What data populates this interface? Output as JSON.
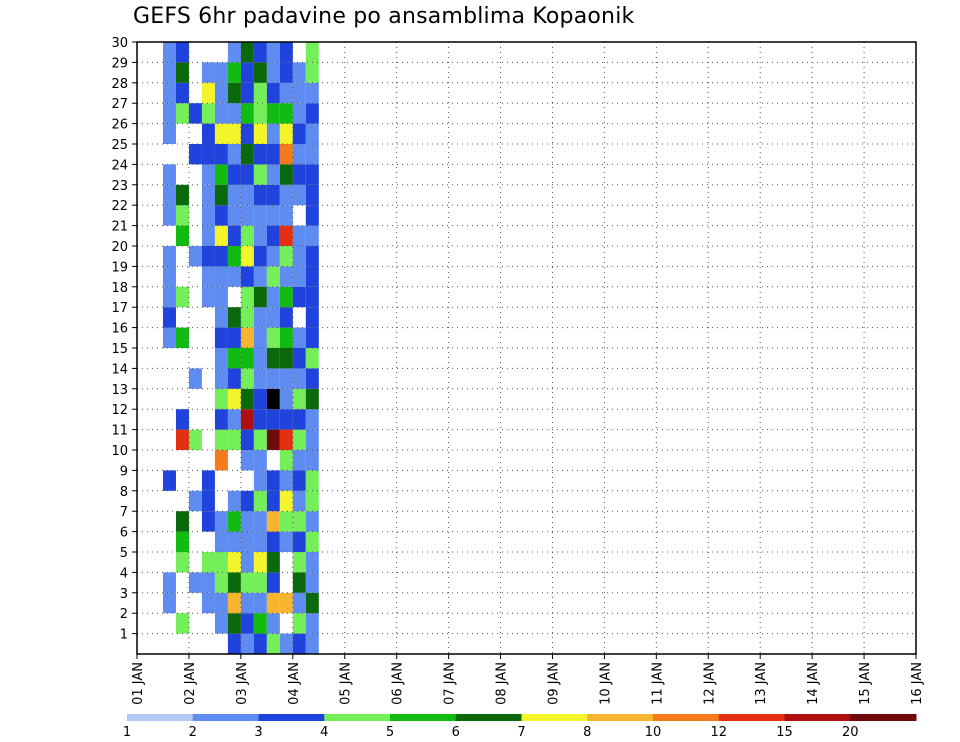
{
  "title": "GEFS 6hr padavine po ansamblima Kopaonik",
  "chart_data": {
    "type": "heatmap",
    "title": "GEFS 6hr padavine po ansamblima Kopaonik",
    "x_ticks": [
      "01 JAN",
      "02 JAN",
      "03 JAN",
      "04 JAN",
      "05 JAN",
      "06 JAN",
      "07 JAN",
      "08 JAN",
      "09 JAN",
      "10 JAN",
      "11 JAN",
      "12 JAN",
      "13 JAN",
      "14 JAN",
      "15 JAN",
      "16 JAN"
    ],
    "y_ticks": [
      "1",
      "2",
      "3",
      "4",
      "5",
      "6",
      "7",
      "8",
      "9",
      "10",
      "11",
      "12",
      "13",
      "14",
      "15",
      "16",
      "17",
      "18",
      "19",
      "20",
      "21",
      "22",
      "23",
      "24",
      "25",
      "26",
      "27",
      "28",
      "29",
      "30"
    ],
    "x_range": [
      "01 JAN",
      "16 JAN"
    ],
    "y_range": [
      0,
      30
    ],
    "time_step_hours": 6,
    "grid": "dotted",
    "colorbar": {
      "position": "bottom",
      "labels": [
        "1",
        "2",
        "3",
        "4",
        "5",
        "6",
        "7",
        "8",
        "10",
        "12",
        "15",
        "20"
      ],
      "colors": [
        "#b4c7f5",
        "#5f8cf0",
        "#1f43dc",
        "#74ee59",
        "#12bb12",
        "#0a690a",
        "#f4f42a",
        "#f7b42e",
        "#f47a1a",
        "#e43010",
        "#b00f0f",
        "#6e0a0a"
      ]
    },
    "cells": [
      [
        0,
        2,
        1
      ],
      [
        0,
        3,
        1
      ],
      [
        0,
        8,
        2
      ],
      [
        0,
        15,
        1
      ],
      [
        0,
        16,
        2
      ],
      [
        0,
        17,
        1
      ],
      [
        0,
        18,
        1
      ],
      [
        0,
        19,
        1
      ],
      [
        0,
        21,
        1
      ],
      [
        0,
        22,
        1
      ],
      [
        0,
        23,
        1
      ],
      [
        0,
        25,
        1
      ],
      [
        0,
        26,
        1
      ],
      [
        0,
        27,
        1
      ],
      [
        0,
        28,
        1
      ],
      [
        0,
        29,
        1
      ],
      [
        1,
        1,
        3
      ],
      [
        1,
        4,
        3
      ],
      [
        1,
        5,
        4
      ],
      [
        1,
        6,
        5
      ],
      [
        1,
        10,
        9
      ],
      [
        1,
        11,
        2
      ],
      [
        1,
        15,
        4
      ],
      [
        1,
        17,
        3
      ],
      [
        1,
        20,
        4
      ],
      [
        1,
        21,
        3
      ],
      [
        1,
        22,
        5
      ],
      [
        1,
        26,
        3
      ],
      [
        1,
        27,
        2
      ],
      [
        1,
        28,
        5
      ],
      [
        1,
        29,
        2
      ],
      [
        2,
        3,
        1
      ],
      [
        2,
        7,
        1
      ],
      [
        2,
        10,
        3
      ],
      [
        2,
        13,
        1
      ],
      [
        2,
        19,
        1
      ],
      [
        2,
        24,
        2
      ],
      [
        2,
        26,
        2
      ],
      [
        3,
        2,
        1
      ],
      [
        3,
        3,
        1
      ],
      [
        3,
        4,
        3
      ],
      [
        3,
        6,
        2
      ],
      [
        3,
        7,
        2
      ],
      [
        3,
        8,
        2
      ],
      [
        3,
        17,
        1
      ],
      [
        3,
        18,
        1
      ],
      [
        3,
        19,
        2
      ],
      [
        3,
        20,
        1
      ],
      [
        3,
        21,
        1
      ],
      [
        3,
        22,
        1
      ],
      [
        3,
        23,
        1
      ],
      [
        3,
        24,
        2
      ],
      [
        3,
        25,
        2
      ],
      [
        3,
        26,
        3
      ],
      [
        3,
        27,
        6
      ],
      [
        3,
        28,
        1
      ],
      [
        4,
        1,
        1
      ],
      [
        4,
        2,
        1
      ],
      [
        4,
        3,
        3
      ],
      [
        4,
        4,
        3
      ],
      [
        4,
        5,
        1
      ],
      [
        4,
        6,
        1
      ],
      [
        4,
        9,
        8
      ],
      [
        4,
        10,
        3
      ],
      [
        4,
        11,
        2
      ],
      [
        4,
        12,
        3
      ],
      [
        4,
        13,
        1
      ],
      [
        4,
        14,
        1
      ],
      [
        4,
        15,
        2
      ],
      [
        4,
        16,
        1
      ],
      [
        4,
        17,
        1
      ],
      [
        4,
        18,
        1
      ],
      [
        4,
        19,
        2
      ],
      [
        4,
        20,
        6
      ],
      [
        4,
        21,
        2
      ],
      [
        4,
        22,
        5
      ],
      [
        4,
        23,
        4
      ],
      [
        4,
        24,
        2
      ],
      [
        4,
        25,
        6
      ],
      [
        4,
        26,
        1
      ],
      [
        4,
        27,
        1
      ],
      [
        4,
        28,
        1
      ],
      [
        5,
        0,
        2
      ],
      [
        5,
        1,
        5
      ],
      [
        5,
        2,
        7
      ],
      [
        5,
        3,
        5
      ],
      [
        5,
        4,
        6
      ],
      [
        5,
        5,
        1
      ],
      [
        5,
        6,
        4
      ],
      [
        5,
        7,
        1
      ],
      [
        5,
        10,
        3
      ],
      [
        5,
        11,
        1
      ],
      [
        5,
        12,
        6
      ],
      [
        5,
        13,
        2
      ],
      [
        5,
        14,
        4
      ],
      [
        5,
        15,
        2
      ],
      [
        5,
        16,
        5
      ],
      [
        5,
        18,
        1
      ],
      [
        5,
        19,
        4
      ],
      [
        5,
        20,
        2
      ],
      [
        5,
        21,
        1
      ],
      [
        5,
        22,
        1
      ],
      [
        5,
        23,
        2
      ],
      [
        5,
        24,
        1
      ],
      [
        5,
        25,
        6
      ],
      [
        5,
        26,
        1
      ],
      [
        5,
        27,
        5
      ],
      [
        5,
        28,
        4
      ],
      [
        5,
        29,
        1
      ],
      [
        6,
        0,
        1
      ],
      [
        6,
        1,
        2
      ],
      [
        6,
        2,
        1
      ],
      [
        6,
        3,
        3
      ],
      [
        6,
        4,
        1
      ],
      [
        6,
        5,
        1
      ],
      [
        6,
        6,
        1
      ],
      [
        6,
        7,
        2
      ],
      [
        6,
        9,
        1
      ],
      [
        6,
        10,
        2
      ],
      [
        6,
        11,
        10
      ],
      [
        6,
        12,
        5
      ],
      [
        6,
        13,
        3
      ],
      [
        6,
        14,
        4
      ],
      [
        6,
        15,
        7
      ],
      [
        6,
        16,
        3
      ],
      [
        6,
        17,
        3
      ],
      [
        6,
        18,
        2
      ],
      [
        6,
        19,
        6
      ],
      [
        6,
        20,
        3
      ],
      [
        6,
        21,
        1
      ],
      [
        6,
        22,
        1
      ],
      [
        6,
        23,
        2
      ],
      [
        6,
        24,
        5
      ],
      [
        6,
        25,
        2
      ],
      [
        6,
        26,
        4
      ],
      [
        6,
        27,
        2
      ],
      [
        6,
        28,
        2
      ],
      [
        6,
        29,
        5
      ],
      [
        7,
        0,
        2
      ],
      [
        7,
        1,
        4
      ],
      [
        7,
        2,
        1
      ],
      [
        7,
        3,
        3
      ],
      [
        7,
        4,
        6
      ],
      [
        7,
        5,
        1
      ],
      [
        7,
        6,
        1
      ],
      [
        7,
        7,
        3
      ],
      [
        7,
        8,
        1
      ],
      [
        7,
        9,
        1
      ],
      [
        7,
        10,
        3
      ],
      [
        7,
        11,
        2
      ],
      [
        7,
        12,
        2
      ],
      [
        7,
        13,
        1
      ],
      [
        7,
        14,
        1
      ],
      [
        7,
        15,
        1
      ],
      [
        7,
        16,
        1
      ],
      [
        7,
        17,
        5
      ],
      [
        7,
        18,
        1
      ],
      [
        7,
        19,
        2
      ],
      [
        7,
        20,
        1
      ],
      [
        7,
        21,
        1
      ],
      [
        7,
        22,
        2
      ],
      [
        7,
        23,
        3
      ],
      [
        7,
        24,
        2
      ],
      [
        7,
        25,
        6
      ],
      [
        7,
        26,
        3
      ],
      [
        7,
        27,
        3
      ],
      [
        7,
        28,
        5
      ],
      [
        7,
        29,
        2
      ],
      [
        8,
        0,
        3
      ],
      [
        8,
        1,
        1
      ],
      [
        8,
        2,
        7
      ],
      [
        8,
        3,
        2
      ],
      [
        8,
        4,
        5
      ],
      [
        8,
        5,
        2
      ],
      [
        8,
        6,
        7
      ],
      [
        8,
        7,
        2
      ],
      [
        8,
        8,
        2
      ],
      [
        8,
        10,
        11
      ],
      [
        8,
        11,
        2
      ],
      [
        8,
        12,
        12
      ],
      [
        8,
        13,
        1
      ],
      [
        8,
        14,
        5
      ],
      [
        8,
        15,
        3
      ],
      [
        8,
        16,
        1
      ],
      [
        8,
        17,
        1
      ],
      [
        8,
        18,
        3
      ],
      [
        8,
        19,
        1
      ],
      [
        8,
        20,
        2
      ],
      [
        8,
        21,
        1
      ],
      [
        8,
        22,
        2
      ],
      [
        8,
        23,
        1
      ],
      [
        8,
        24,
        2
      ],
      [
        8,
        25,
        1
      ],
      [
        8,
        26,
        4
      ],
      [
        8,
        27,
        2
      ],
      [
        8,
        28,
        1
      ],
      [
        8,
        29,
        1
      ],
      [
        9,
        0,
        1
      ],
      [
        9,
        2,
        7
      ],
      [
        9,
        5,
        1
      ],
      [
        9,
        6,
        3
      ],
      [
        9,
        7,
        6
      ],
      [
        9,
        8,
        1
      ],
      [
        9,
        9,
        3
      ],
      [
        9,
        10,
        9
      ],
      [
        9,
        11,
        2
      ],
      [
        9,
        12,
        1
      ],
      [
        9,
        13,
        1
      ],
      [
        9,
        14,
        5
      ],
      [
        9,
        15,
        4
      ],
      [
        9,
        16,
        2
      ],
      [
        9,
        17,
        4
      ],
      [
        9,
        18,
        1
      ],
      [
        9,
        19,
        3
      ],
      [
        9,
        20,
        9
      ],
      [
        9,
        21,
        1
      ],
      [
        9,
        22,
        1
      ],
      [
        9,
        23,
        5
      ],
      [
        9,
        24,
        8
      ],
      [
        9,
        25,
        6
      ],
      [
        9,
        26,
        4
      ],
      [
        9,
        27,
        1
      ],
      [
        9,
        28,
        2
      ],
      [
        9,
        29,
        2
      ],
      [
        10,
        0,
        2
      ],
      [
        10,
        1,
        3
      ],
      [
        10,
        2,
        1
      ],
      [
        10,
        3,
        5
      ],
      [
        10,
        4,
        3
      ],
      [
        10,
        5,
        2
      ],
      [
        10,
        6,
        3
      ],
      [
        10,
        7,
        1
      ],
      [
        10,
        8,
        2
      ],
      [
        10,
        9,
        1
      ],
      [
        10,
        10,
        3
      ],
      [
        10,
        11,
        2
      ],
      [
        10,
        12,
        3
      ],
      [
        10,
        13,
        1
      ],
      [
        10,
        14,
        2
      ],
      [
        10,
        15,
        1
      ],
      [
        10,
        17,
        2
      ],
      [
        10,
        18,
        1
      ],
      [
        10,
        19,
        1
      ],
      [
        10,
        20,
        1
      ],
      [
        10,
        22,
        1
      ],
      [
        10,
        23,
        2
      ],
      [
        10,
        24,
        1
      ],
      [
        10,
        25,
        2
      ],
      [
        10,
        26,
        1
      ],
      [
        10,
        27,
        1
      ],
      [
        10,
        28,
        1
      ],
      [
        11,
        0,
        1
      ],
      [
        11,
        1,
        1
      ],
      [
        11,
        2,
        5
      ],
      [
        11,
        3,
        1
      ],
      [
        11,
        4,
        1
      ],
      [
        11,
        5,
        3
      ],
      [
        11,
        6,
        1
      ],
      [
        11,
        7,
        3
      ],
      [
        11,
        8,
        3
      ],
      [
        11,
        9,
        1
      ],
      [
        11,
        10,
        1
      ],
      [
        11,
        11,
        1
      ],
      [
        11,
        12,
        5
      ],
      [
        11,
        13,
        2
      ],
      [
        11,
        14,
        3
      ],
      [
        11,
        15,
        2
      ],
      [
        11,
        16,
        2
      ],
      [
        11,
        17,
        2
      ],
      [
        11,
        18,
        2
      ],
      [
        11,
        19,
        2
      ],
      [
        11,
        20,
        1
      ],
      [
        11,
        21,
        2
      ],
      [
        11,
        22,
        2
      ],
      [
        11,
        23,
        2
      ],
      [
        11,
        24,
        1
      ],
      [
        11,
        25,
        1
      ],
      [
        11,
        26,
        2
      ],
      [
        11,
        27,
        1
      ],
      [
        11,
        28,
        3
      ],
      [
        11,
        29,
        3
      ]
    ]
  }
}
